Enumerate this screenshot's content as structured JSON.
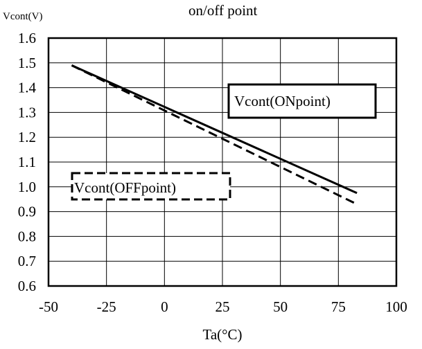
{
  "chart_data": {
    "type": "line",
    "title": "on/off point",
    "xlabel": "Ta(°C)",
    "ylabel": "Vcont(V)",
    "xlim": [
      -50,
      100
    ],
    "ylim": [
      0.6,
      1.6
    ],
    "xticks": [
      -50,
      -25,
      0,
      25,
      50,
      75,
      100
    ],
    "yticks": [
      0.6,
      0.7,
      0.8,
      0.9,
      1.0,
      1.1,
      1.2,
      1.3,
      1.4,
      1.5,
      1.6
    ],
    "xtick_labels": [
      "-50",
      "-25",
      "0",
      "25",
      "50",
      "75",
      "100"
    ],
    "ytick_labels": [
      "0.6",
      "0.7",
      "0.8",
      "0.9",
      "1.0",
      "1.1",
      "1.2",
      "1.3",
      "1.4",
      "1.5",
      "1.6"
    ],
    "grid": true,
    "series": [
      {
        "name": "Vcont(ONpoint)",
        "style": "solid",
        "color": "#000000",
        "x": [
          -40,
          83
        ],
        "y": [
          1.49,
          0.975
        ]
      },
      {
        "name": "Vcont(OFFpoint)",
        "style": "dashed",
        "color": "#000000",
        "x": [
          -40,
          83
        ],
        "y": [
          1.49,
          0.93
        ]
      }
    ],
    "legend": [
      {
        "label": "Vcont(ONpoint)",
        "style": "solid",
        "position": "right"
      },
      {
        "label": "Vcont(OFFpoint)",
        "style": "dashed",
        "position": "left"
      }
    ]
  }
}
